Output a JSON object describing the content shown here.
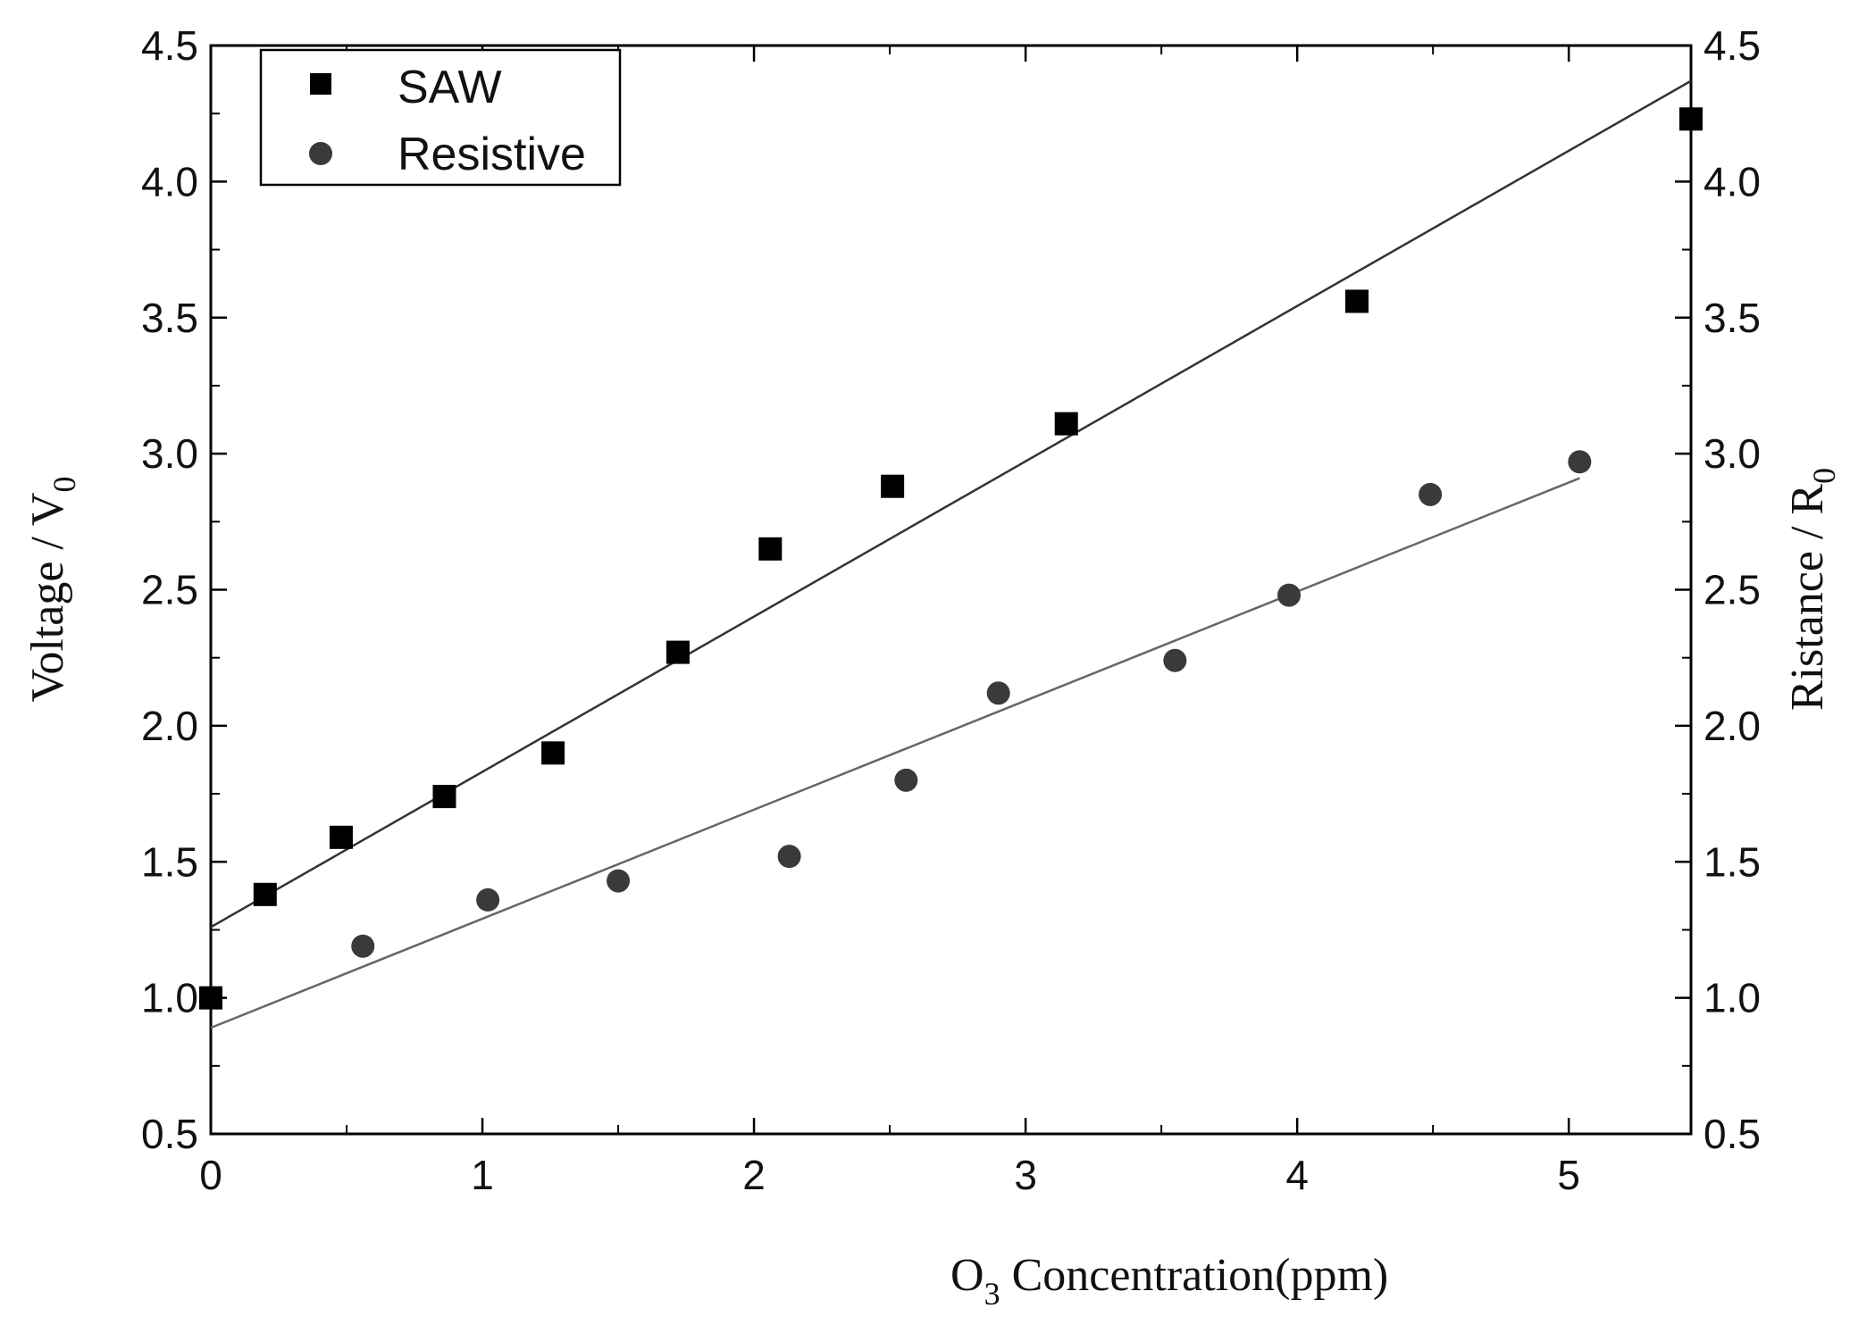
{
  "chart_data": {
    "type": "scatter",
    "title": "",
    "xlabel": {
      "prefix": "O",
      "subscript": "3",
      "suffix": " Concentration(ppm)"
    },
    "ylabel_left": {
      "main": "Voltage / V",
      "subscript": "0"
    },
    "ylabel_right": {
      "main": "Ristance / R",
      "subscript": "0"
    },
    "xlim": [
      0,
      5.45
    ],
    "ylim": [
      0.5,
      4.5
    ],
    "x_ticks": [
      "0",
      "1",
      "2",
      "3",
      "4",
      "5"
    ],
    "y_ticks": [
      "0.5",
      "1.0",
      "1.5",
      "2.0",
      "2.5",
      "3.0",
      "3.5",
      "4.0",
      "4.5"
    ],
    "legend_position": "top-left",
    "series": [
      {
        "name": "SAW",
        "marker": "square",
        "color": "#000000",
        "points": [
          [
            0.0,
            1.0
          ],
          [
            0.2,
            1.38
          ],
          [
            0.48,
            1.59
          ],
          [
            0.86,
            1.74
          ],
          [
            1.26,
            1.9
          ],
          [
            1.72,
            2.27
          ],
          [
            2.06,
            2.65
          ],
          [
            2.51,
            2.88
          ],
          [
            3.15,
            3.11
          ],
          [
            4.22,
            3.56
          ],
          [
            5.45,
            4.23
          ]
        ],
        "fit": {
          "x": [
            0.0,
            5.45
          ],
          "y": [
            1.26,
            4.37
          ]
        }
      },
      {
        "name": "Resistive",
        "marker": "circle",
        "color": "#3a3a3a",
        "points": [
          [
            0.56,
            1.19
          ],
          [
            1.02,
            1.36
          ],
          [
            1.5,
            1.43
          ],
          [
            2.13,
            1.52
          ],
          [
            2.56,
            1.8
          ],
          [
            2.9,
            2.12
          ],
          [
            3.55,
            2.24
          ],
          [
            3.97,
            2.48
          ],
          [
            4.49,
            2.85
          ],
          [
            5.04,
            2.97
          ]
        ],
        "fit": {
          "x": [
            0.0,
            5.04
          ],
          "y": [
            0.89,
            2.91
          ]
        }
      }
    ]
  }
}
